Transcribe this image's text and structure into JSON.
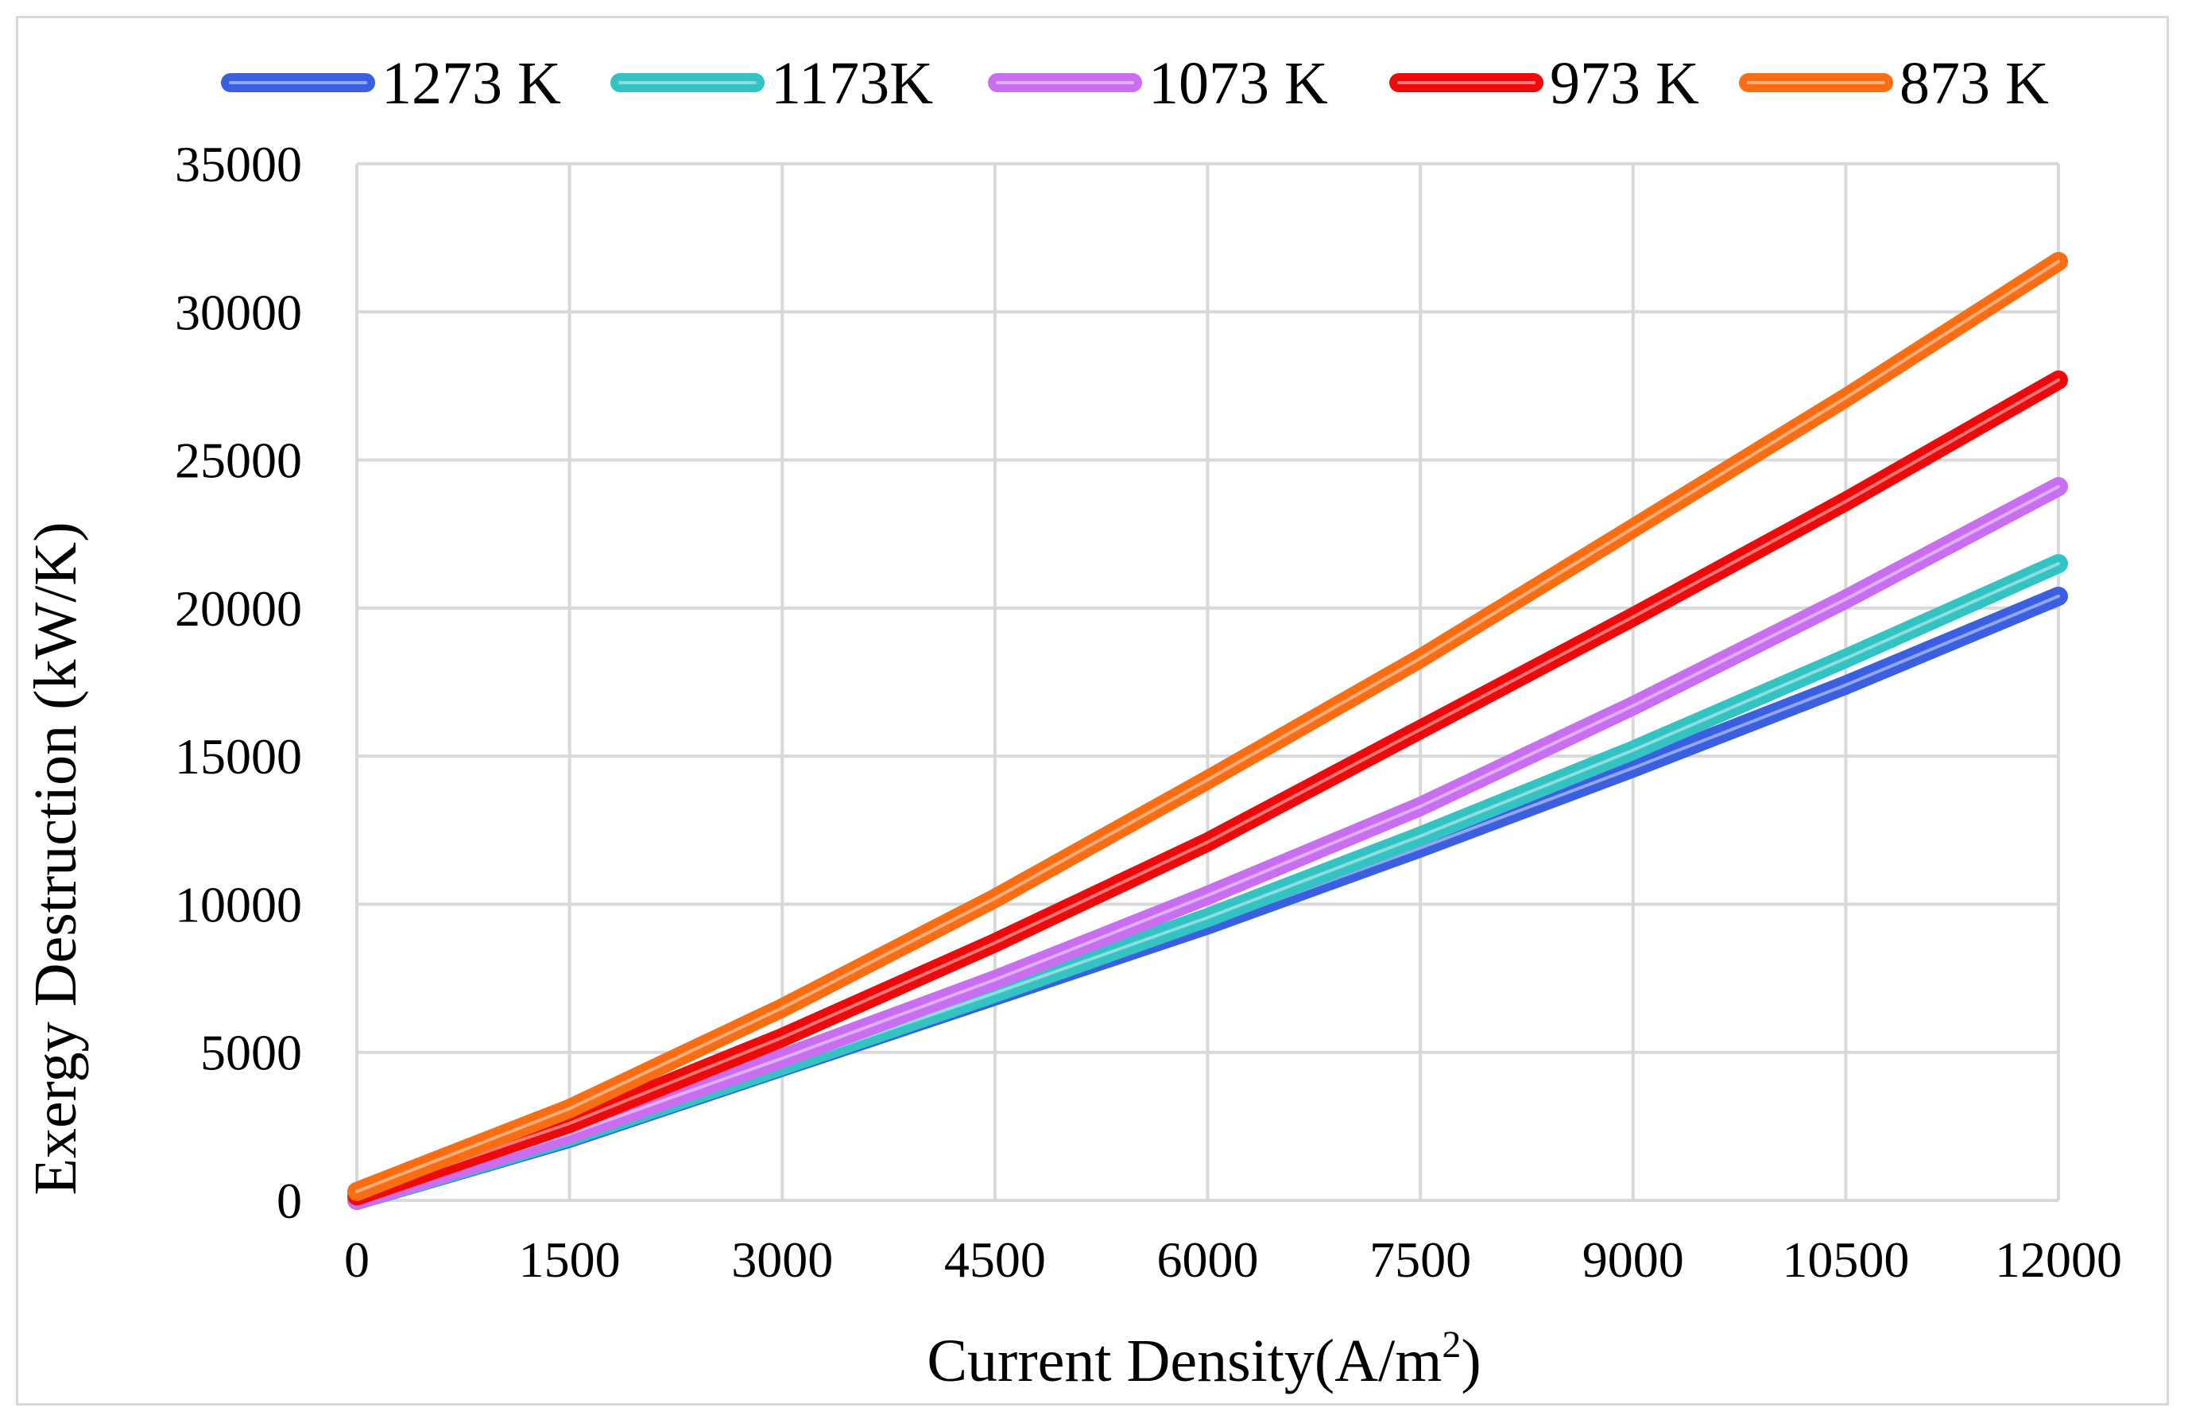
{
  "chart_data": {
    "type": "line",
    "title": "",
    "xlabel": "Current Density(A/m",
    "xlabel_sup": "2",
    "xlabel_close": ")",
    "ylabel": "Exergy Destruction (kW/K)",
    "xlim": [
      0,
      12000
    ],
    "ylim": [
      0,
      35000
    ],
    "xticks": [
      0,
      1500,
      3000,
      4500,
      6000,
      7500,
      9000,
      10500,
      12000
    ],
    "yticks": [
      0,
      5000,
      10000,
      15000,
      20000,
      25000,
      30000,
      35000
    ],
    "xtick_labels": [
      "0",
      "1500",
      "3000",
      "4500",
      "6000",
      "7500",
      "9000",
      "10500",
      "12000"
    ],
    "ytick_labels": [
      "0",
      "5000",
      "10000",
      "15000",
      "20000",
      "25000",
      "30000",
      "35000"
    ],
    "grid": true,
    "legend_position": "top",
    "x": [
      0,
      1500,
      3000,
      4500,
      6000,
      7500,
      9000,
      10500,
      12000
    ],
    "series": [
      {
        "name": "1273 K",
        "color": "#3a5fe0",
        "values": [
          0,
          2100,
          4500,
          6900,
          9300,
          11900,
          14600,
          17400,
          20400
        ]
      },
      {
        "name": "1173K",
        "color": "#33c3c3",
        "values": [
          0,
          2150,
          4550,
          7000,
          9550,
          12300,
          15200,
          18300,
          21500
        ]
      },
      {
        "name": "1073 K",
        "color": "#c96ef0",
        "values": [
          0,
          2250,
          4800,
          7450,
          10300,
          13300,
          16700,
          20300,
          24100
        ]
      },
      {
        "name": "973 K",
        "color": "#ee0a0a",
        "values": [
          150,
          2600,
          5500,
          8700,
          12100,
          15900,
          19700,
          23600,
          27700
        ]
      },
      {
        "name": "873 K",
        "color": "#fb6d13",
        "values": [
          300,
          3100,
          6500,
          10200,
          14200,
          18300,
          22700,
          27100,
          31700
        ]
      }
    ]
  }
}
